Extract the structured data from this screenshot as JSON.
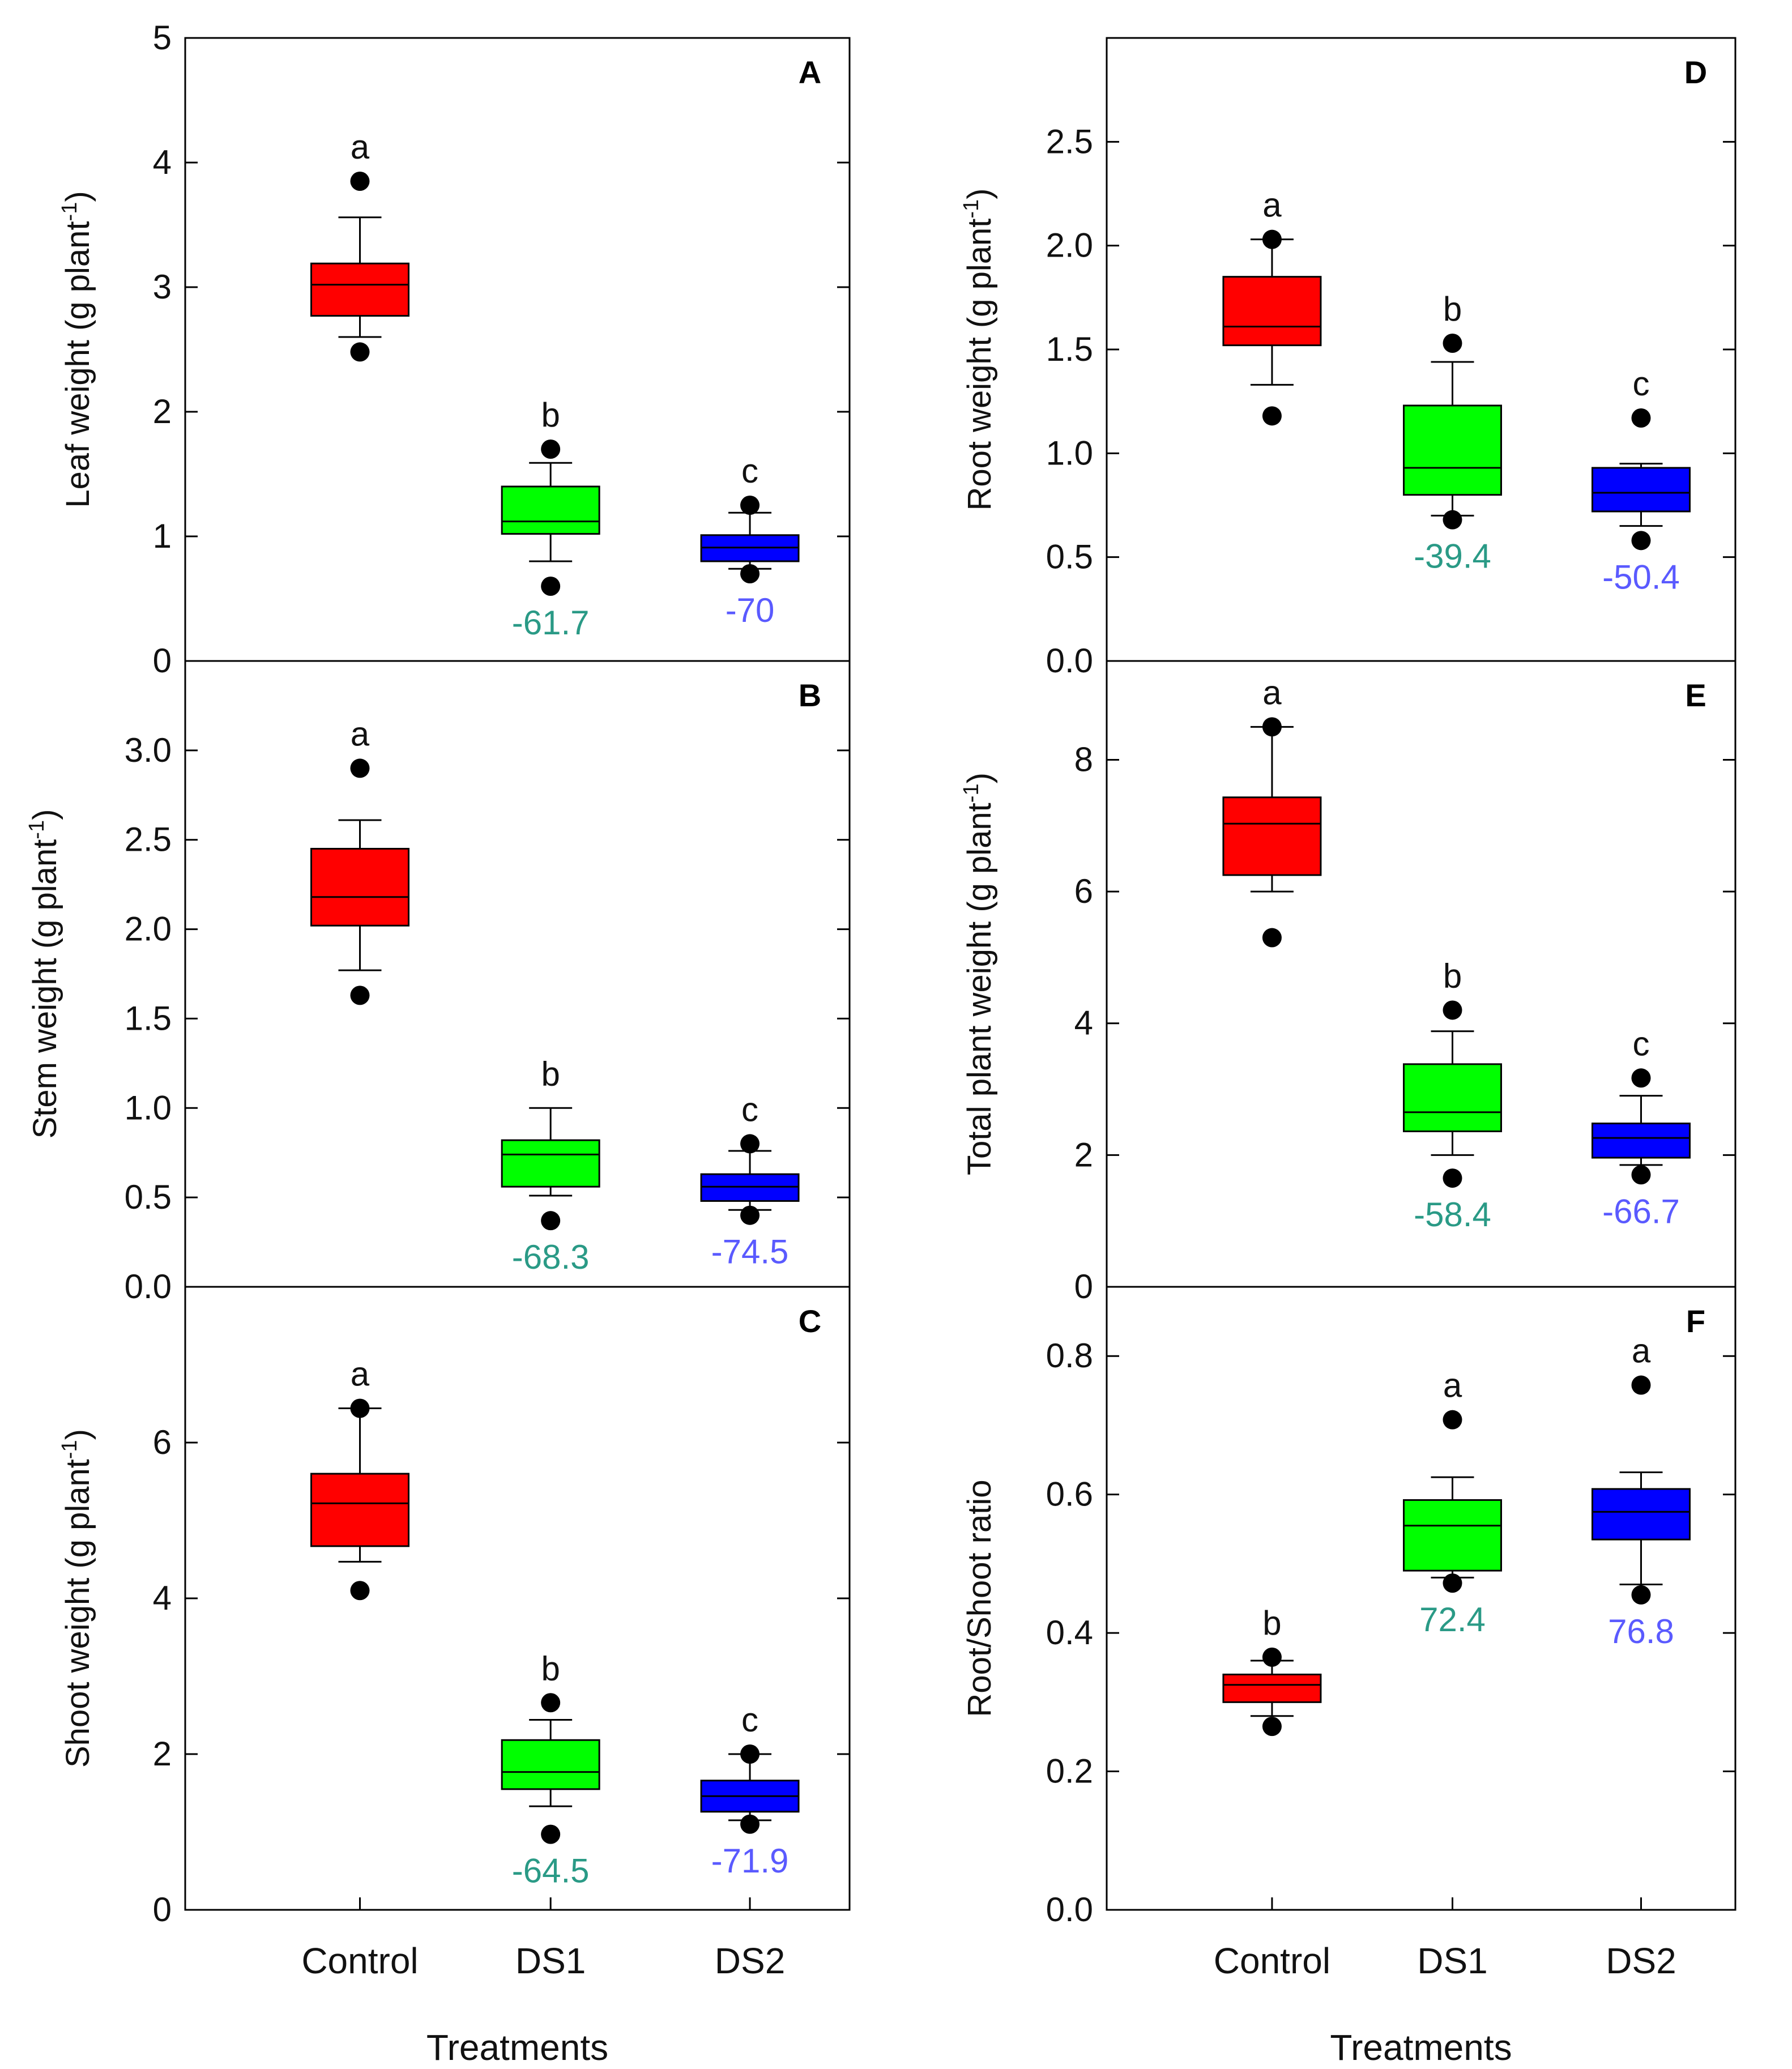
{
  "colors": {
    "Control": "#ff0000",
    "DS1": "#00ff00",
    "DS2": "#0000ff",
    "pct_DS1": "#2a9a86",
    "pct_DS2": "#5a5aff"
  },
  "chart_data": [
    {
      "type": "box",
      "panel": "A",
      "ylabel": "Leaf weight (g plant-1)",
      "ylim": [
        0,
        5
      ],
      "yticks": [
        0,
        1,
        2,
        3,
        4,
        5
      ],
      "ytick_labels": [
        "0",
        "1",
        "2",
        "3",
        "4",
        "5"
      ],
      "xticks_visible": false,
      "categories": [
        "Control",
        "DS1",
        "DS2"
      ],
      "boxes": [
        {
          "name": "Control",
          "q1": 2.77,
          "median": 3.02,
          "q3": 3.19,
          "whisker_low": 2.6,
          "whisker_high": 3.56,
          "outliers": [
            3.85,
            2.48
          ],
          "letter": "a",
          "pct": ""
        },
        {
          "name": "DS1",
          "q1": 1.02,
          "median": 1.12,
          "q3": 1.4,
          "whisker_low": 0.8,
          "whisker_high": 1.59,
          "outliers": [
            1.7,
            0.6
          ],
          "letter": "b",
          "pct": "-61.7"
        },
        {
          "name": "DS2",
          "q1": 0.8,
          "median": 0.91,
          "q3": 1.01,
          "whisker_low": 0.74,
          "whisker_high": 1.19,
          "outliers": [
            1.25,
            0.7
          ],
          "letter": "c",
          "pct": "-70"
        }
      ]
    },
    {
      "type": "box",
      "panel": "B",
      "ylabel": "Stem weight (g plant-1)",
      "ylim": [
        0,
        3.5
      ],
      "yticks": [
        0,
        0.5,
        1,
        1.5,
        2,
        2.5,
        3
      ],
      "ytick_labels": [
        "0.0",
        "0.5",
        "1.0",
        "1.5",
        "2.0",
        "2.5",
        "3.0"
      ],
      "xticks_visible": false,
      "categories": [
        "Control",
        "DS1",
        "DS2"
      ],
      "boxes": [
        {
          "name": "Control",
          "q1": 2.02,
          "median": 2.18,
          "q3": 2.45,
          "whisker_low": 1.77,
          "whisker_high": 2.61,
          "outliers": [
            2.9,
            1.63
          ],
          "letter": "a",
          "pct": ""
        },
        {
          "name": "DS1",
          "q1": 0.56,
          "median": 0.74,
          "q3": 0.82,
          "whisker_low": 0.51,
          "whisker_high": 1.0,
          "outliers": [
            0.37
          ],
          "letter": "b",
          "pct": "-68.3"
        },
        {
          "name": "DS2",
          "q1": 0.48,
          "median": 0.56,
          "q3": 0.63,
          "whisker_low": 0.43,
          "whisker_high": 0.76,
          "outliers": [
            0.8,
            0.4
          ],
          "letter": "c",
          "pct": "-74.5"
        }
      ]
    },
    {
      "type": "box",
      "panel": "C",
      "ylabel": "Shoot weight (g plant-1)",
      "ylim": [
        0,
        8
      ],
      "yticks": [
        0,
        2,
        4,
        6
      ],
      "ytick_labels": [
        "0",
        "2",
        "4",
        "6"
      ],
      "xticks_visible": true,
      "xlabel": "Treatments",
      "categories": [
        "Control",
        "DS1",
        "DS2"
      ],
      "boxes": [
        {
          "name": "Control",
          "q1": 4.67,
          "median": 5.22,
          "q3": 5.6,
          "whisker_low": 4.47,
          "whisker_high": 6.44,
          "outliers": [
            6.44,
            4.1
          ],
          "letter": "a",
          "pct": ""
        },
        {
          "name": "DS1",
          "q1": 1.55,
          "median": 1.77,
          "q3": 2.18,
          "whisker_low": 1.33,
          "whisker_high": 2.44,
          "outliers": [
            2.66,
            0.97
          ],
          "letter": "b",
          "pct": "-64.5"
        },
        {
          "name": "DS2",
          "q1": 1.26,
          "median": 1.46,
          "q3": 1.66,
          "whisker_low": 1.15,
          "whisker_high": 2.0,
          "outliers": [
            2.0,
            1.1
          ],
          "letter": "c",
          "pct": "-71.9"
        }
      ]
    },
    {
      "type": "box",
      "panel": "D",
      "ylabel": "Root weight (g plant-1)",
      "ylim": [
        0,
        3.0
      ],
      "yticks": [
        0,
        0.5,
        1,
        1.5,
        2,
        2.5
      ],
      "ytick_labels": [
        "0.0",
        "0.5",
        "1.0",
        "1.5",
        "2.0",
        "2.5"
      ],
      "xticks_visible": false,
      "categories": [
        "Control",
        "DS1",
        "DS2"
      ],
      "boxes": [
        {
          "name": "Control",
          "q1": 1.52,
          "median": 1.61,
          "q3": 1.85,
          "whisker_low": 1.33,
          "whisker_high": 2.03,
          "outliers": [
            2.03,
            1.18
          ],
          "letter": "a",
          "pct": ""
        },
        {
          "name": "DS1",
          "q1": 0.8,
          "median": 0.93,
          "q3": 1.23,
          "whisker_low": 0.7,
          "whisker_high": 1.44,
          "outliers": [
            1.53,
            0.68
          ],
          "letter": "b",
          "pct": "-39.4"
        },
        {
          "name": "DS2",
          "q1": 0.72,
          "median": 0.81,
          "q3": 0.93,
          "whisker_low": 0.65,
          "whisker_high": 0.95,
          "outliers": [
            1.17,
            0.58
          ],
          "letter": "c",
          "pct": "-50.4"
        }
      ]
    },
    {
      "type": "box",
      "panel": "E",
      "ylabel": "Total plant weight (g plant-1)",
      "ylim": [
        0,
        9.5
      ],
      "yticks": [
        0,
        2,
        4,
        6,
        8
      ],
      "ytick_labels": [
        "0",
        "2",
        "4",
        "6",
        "8"
      ],
      "xticks_visible": false,
      "categories": [
        "Control",
        "DS1",
        "DS2"
      ],
      "boxes": [
        {
          "name": "Control",
          "q1": 6.25,
          "median": 7.03,
          "q3": 7.43,
          "whisker_low": 6.0,
          "whisker_high": 8.5,
          "outliers": [
            8.5,
            5.3
          ],
          "letter": "a",
          "pct": ""
        },
        {
          "name": "DS1",
          "q1": 2.36,
          "median": 2.65,
          "q3": 3.38,
          "whisker_low": 2.0,
          "whisker_high": 3.88,
          "outliers": [
            4.2,
            1.65
          ],
          "letter": "b",
          "pct": "-58.4"
        },
        {
          "name": "DS2",
          "q1": 1.96,
          "median": 2.26,
          "q3": 2.48,
          "whisker_low": 1.85,
          "whisker_high": 2.9,
          "outliers": [
            3.17,
            1.7
          ],
          "letter": "c",
          "pct": "-66.7"
        }
      ]
    },
    {
      "type": "box",
      "panel": "F",
      "ylabel": "Root/Shoot ratio",
      "ylim": [
        0,
        0.9
      ],
      "yticks": [
        0,
        0.2,
        0.4,
        0.6,
        0.8
      ],
      "ytick_labels": [
        "0.0",
        "0.2",
        "0.4",
        "0.6",
        "0.8"
      ],
      "xticks_visible": true,
      "xlabel": "Treatments",
      "categories": [
        "Control",
        "DS1",
        "DS2"
      ],
      "boxes": [
        {
          "name": "Control",
          "q1": 0.3,
          "median": 0.325,
          "q3": 0.34,
          "whisker_low": 0.28,
          "whisker_high": 0.36,
          "outliers": [
            0.365,
            0.265
          ],
          "letter": "b",
          "pct": ""
        },
        {
          "name": "DS1",
          "q1": 0.49,
          "median": 0.555,
          "q3": 0.592,
          "whisker_low": 0.48,
          "whisker_high": 0.625,
          "outliers": [
            0.708,
            0.472
          ],
          "letter": "a",
          "pct": "72.4"
        },
        {
          "name": "DS2",
          "q1": 0.535,
          "median": 0.575,
          "q3": 0.608,
          "whisker_low": 0.47,
          "whisker_high": 0.632,
          "outliers": [
            0.758,
            0.455
          ],
          "letter": "a",
          "pct": "76.8"
        }
      ]
    }
  ]
}
